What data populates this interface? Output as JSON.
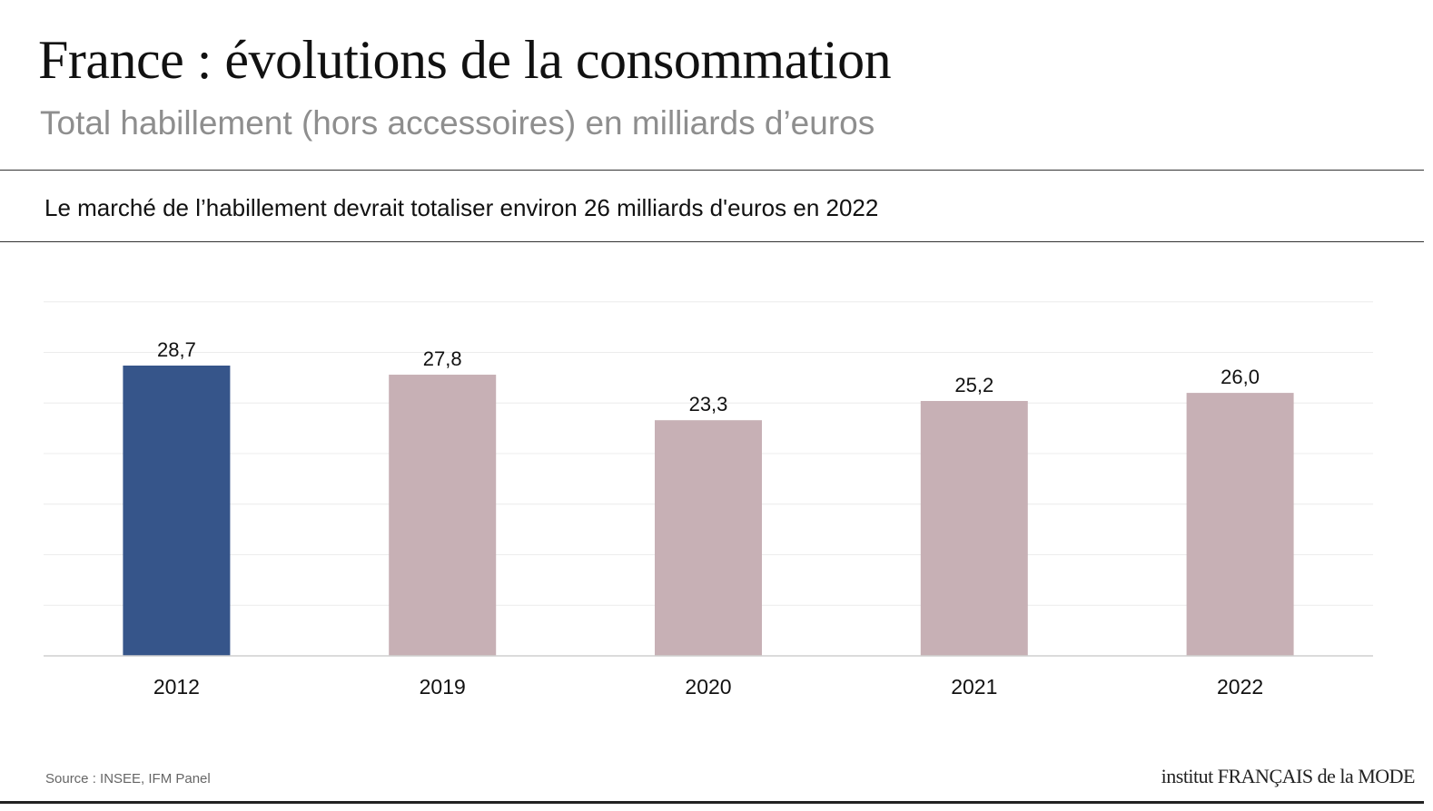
{
  "header": {
    "title": "France : évolutions de la consommation",
    "subtitle": "Total habillement (hors accessoires) en milliards d’euros",
    "headline": "Le marché de l’habillement devrait totaliser environ 26 milliards d'euros en 2022"
  },
  "footer": {
    "source": "Source : INSEE, IFM Panel",
    "logo_text": "institut FRANÇAIS de la MODE"
  },
  "colors": {
    "highlight": "#36558a",
    "bar": "#c7b0b5",
    "grid": "#ececec",
    "axis": "#cfcfcf"
  },
  "chart_data": {
    "type": "bar",
    "categories": [
      "2012",
      "2019",
      "2020",
      "2021",
      "2022"
    ],
    "values": [
      28.7,
      27.8,
      23.3,
      25.2,
      26.0
    ],
    "value_labels": [
      "28,7",
      "27,8",
      "23,3",
      "25,2",
      "26,0"
    ],
    "highlight_index": 0,
    "ylim": [
      0,
      35
    ],
    "grid": true,
    "xlabel": "",
    "ylabel": ""
  }
}
